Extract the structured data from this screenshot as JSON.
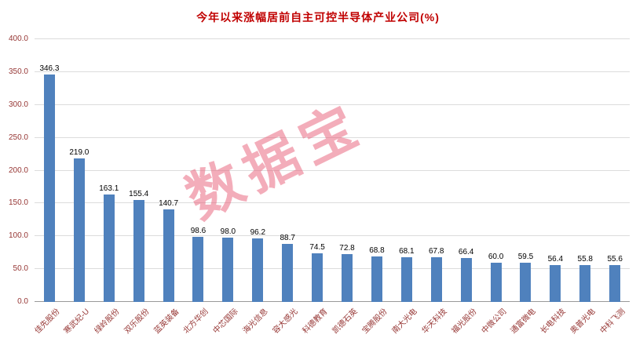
{
  "chart_data": {
    "type": "bar",
    "title": "今年以来涨幅居前自主可控半导体产业公司(%)",
    "categories": [
      "佳先股份",
      "寒武纪-U",
      "绿岭股份",
      "双乐股份",
      "蓝英装备",
      "北方华创",
      "中芯国际",
      "海光信息",
      "容大感光",
      "科德教育",
      "凯德石英",
      "宝腾股份",
      "南大光电",
      "华天科技",
      "福光股份",
      "中微公司",
      "通富微电",
      "长电科技",
      "奥普光电",
      "中科飞测"
    ],
    "values": [
      346.3,
      219.0,
      163.1,
      155.4,
      140.7,
      98.6,
      98.0,
      96.2,
      88.7,
      74.5,
      72.8,
      68.8,
      68.1,
      67.8,
      66.4,
      60.0,
      59.5,
      56.4,
      55.8,
      55.6
    ],
    "value_labels": [
      "346.3",
      "219.0",
      "163.1",
      "155.4",
      "140.7",
      "98.6",
      "98.0",
      "96.2",
      "88.7",
      "74.5",
      "72.8",
      "68.8",
      "68.1",
      "67.8",
      "66.4",
      "60.0",
      "59.5",
      "56.4",
      "55.8",
      "55.6"
    ],
    "xlabel": "",
    "ylabel": "",
    "ylim": [
      0,
      400
    ],
    "ytick_step": 50,
    "ytick_labels": [
      "0.0",
      "50.0",
      "100.0",
      "150.0",
      "200.0",
      "250.0",
      "300.0",
      "350.0",
      "400.0"
    ],
    "grid": true,
    "legend": false
  },
  "watermark": {
    "text": "数据宝"
  },
  "colors": {
    "bar": "#4F81BD",
    "title": "#C00000",
    "axis_label": "#963634",
    "value_label": "#000000",
    "gridline": "#DCDCDC",
    "watermark": "#E85C76"
  }
}
